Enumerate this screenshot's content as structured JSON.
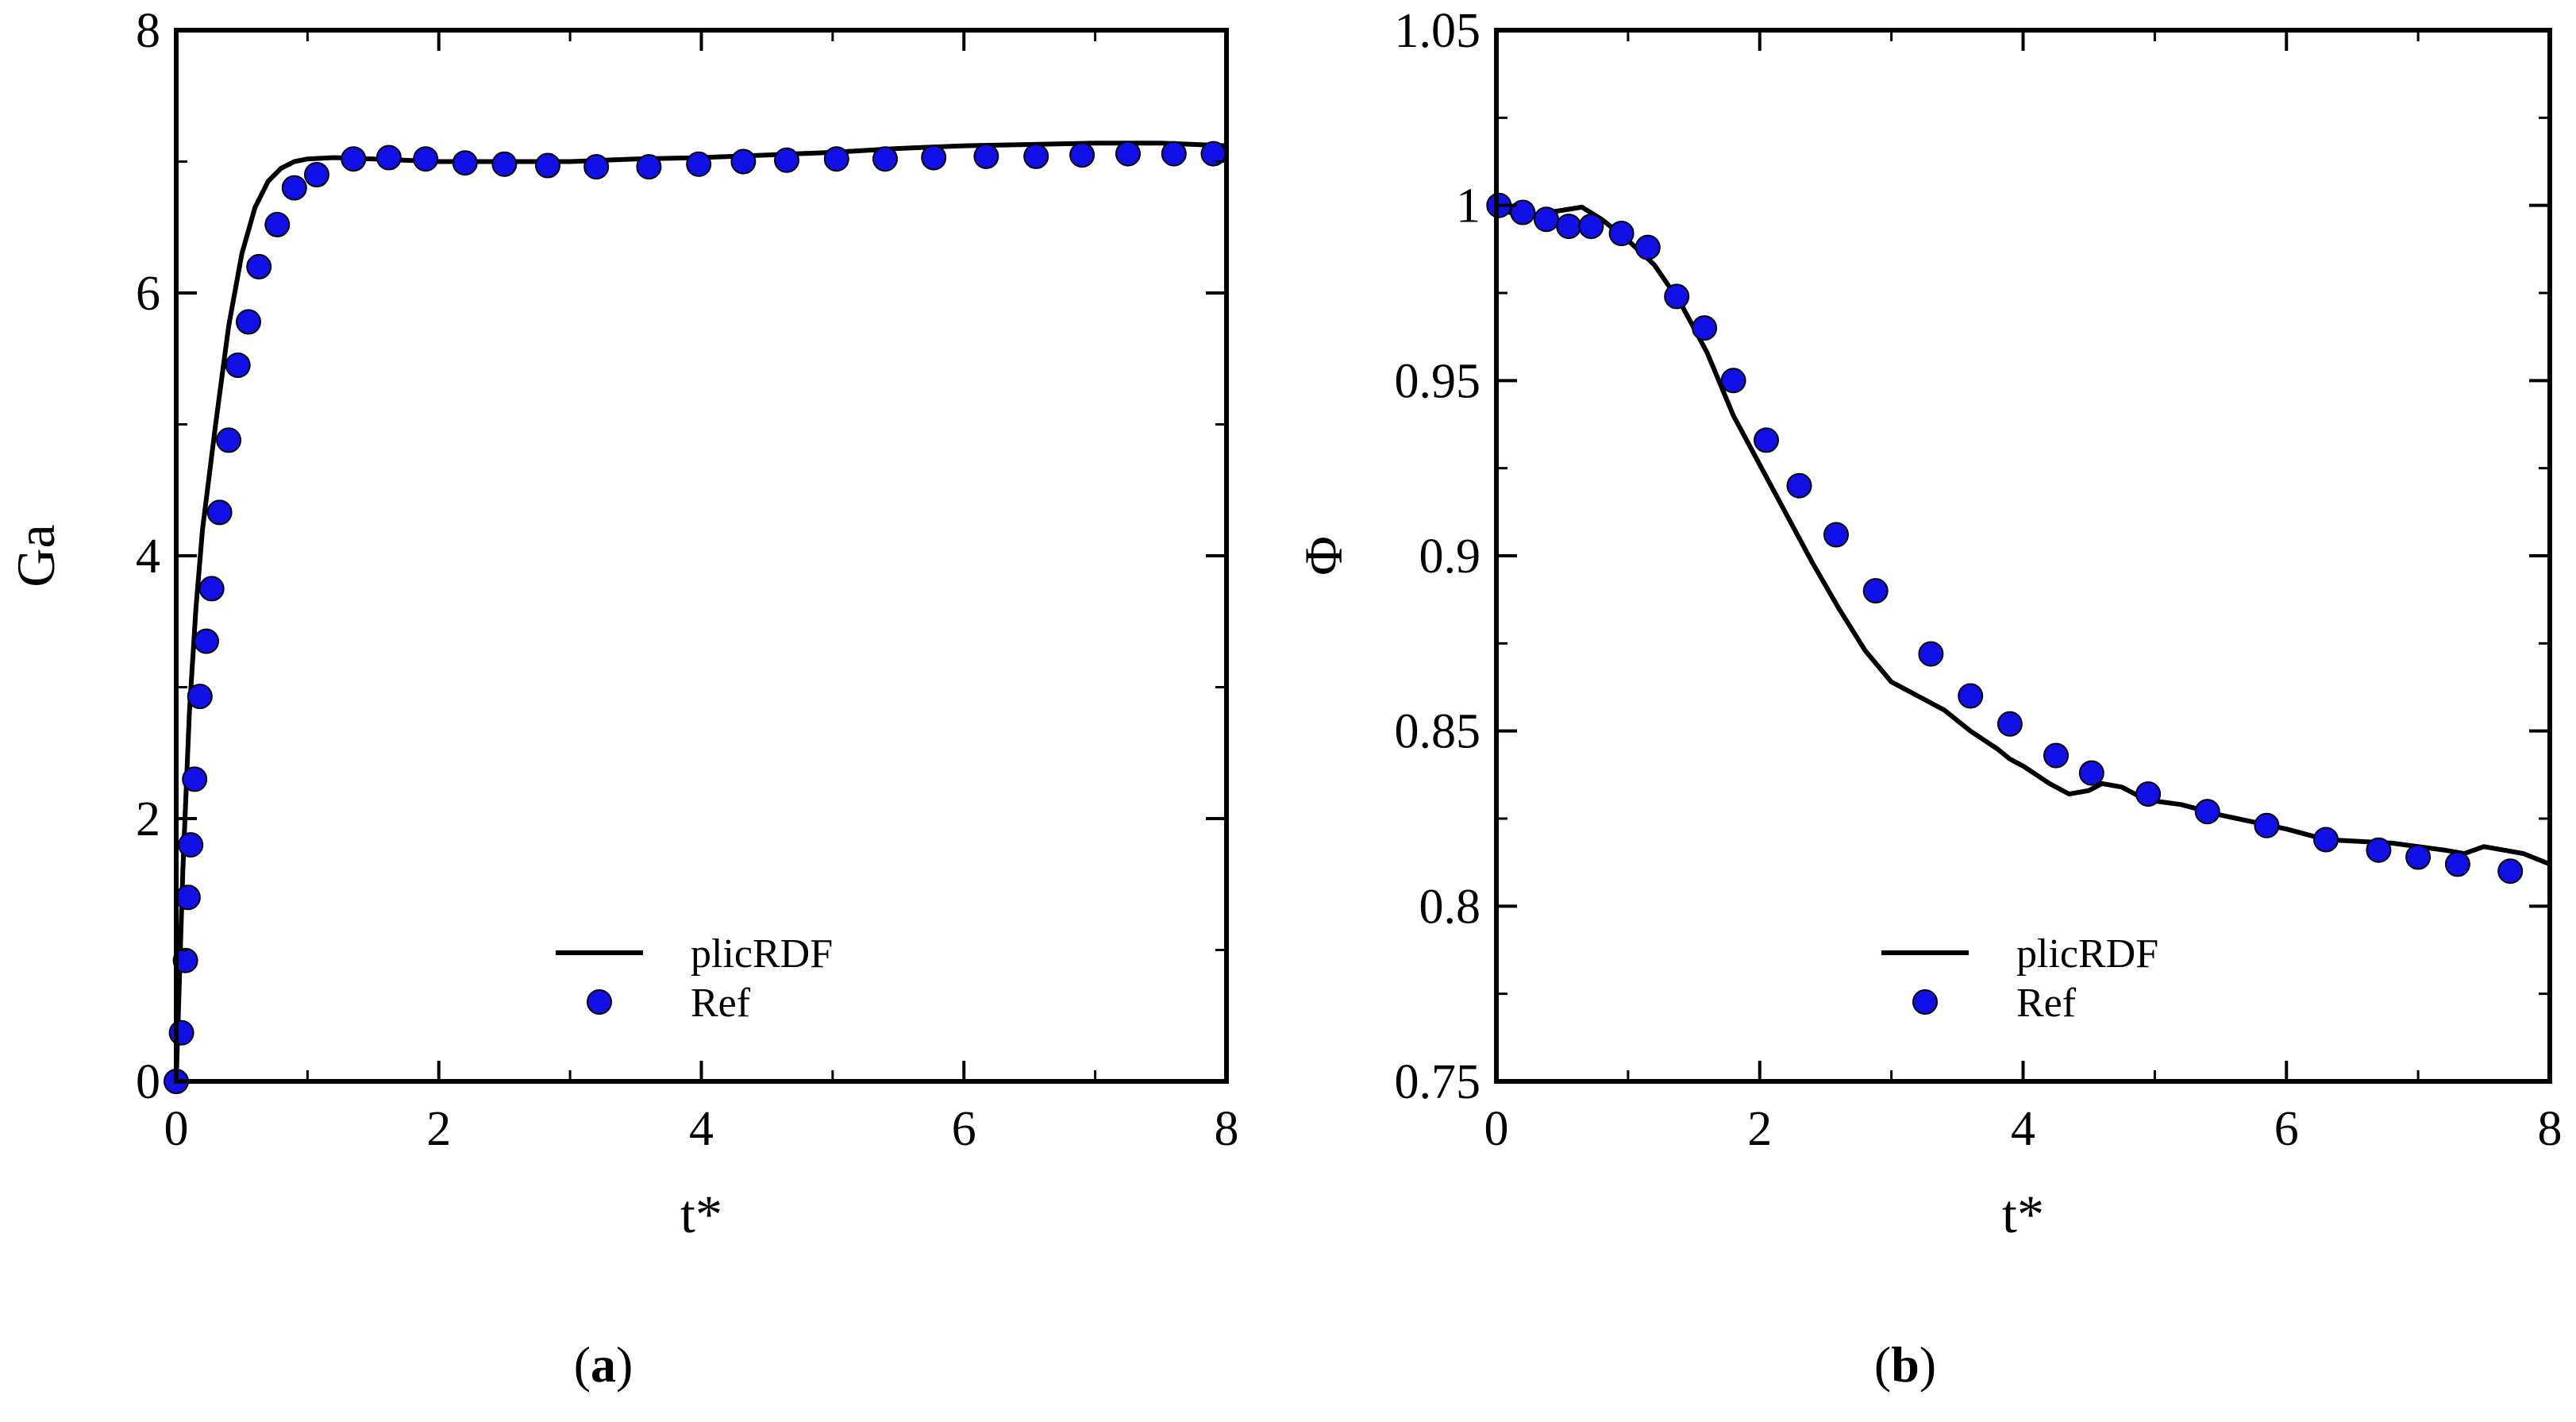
{
  "chart_data": [
    {
      "type": "line+scatter",
      "panel_label": "a",
      "xlabel": "t*",
      "ylabel": "Ga",
      "xlim": [
        0,
        8
      ],
      "ylim": [
        0,
        8
      ],
      "xticks": [
        0,
        2,
        4,
        6,
        8
      ],
      "yticks": [
        0,
        2,
        4,
        6,
        8
      ],
      "xtick_labels": [
        "0",
        "2",
        "4",
        "6",
        "8"
      ],
      "ytick_labels": [
        "0",
        "2",
        "4",
        "6",
        "8"
      ],
      "legend": [
        "plicRDF",
        "Ref"
      ],
      "legend_position": "bottom-center",
      "series": [
        {
          "name": "plicRDF",
          "kind": "line",
          "color": "#000000",
          "x": [
            0,
            0.05,
            0.1,
            0.15,
            0.2,
            0.3,
            0.4,
            0.5,
            0.6,
            0.7,
            0.8,
            0.9,
            1.0,
            1.2,
            1.5,
            2.0,
            2.5,
            3.0,
            3.5,
            4.0,
            4.5,
            5.0,
            5.5,
            6.0,
            6.5,
            7.0,
            7.5,
            8.0
          ],
          "y": [
            0,
            1.6,
            2.8,
            3.6,
            4.2,
            5.0,
            5.75,
            6.3,
            6.65,
            6.85,
            6.95,
            7.0,
            7.02,
            7.03,
            7.02,
            7.0,
            7.0,
            7.0,
            7.02,
            7.03,
            7.05,
            7.07,
            7.1,
            7.12,
            7.13,
            7.14,
            7.14,
            7.12
          ]
        },
        {
          "name": "Ref",
          "kind": "scatter",
          "color": "#1010e6",
          "x": [
            0.0,
            0.04,
            0.07,
            0.09,
            0.11,
            0.14,
            0.18,
            0.23,
            0.27,
            0.33,
            0.4,
            0.47,
            0.55,
            0.63,
            0.77,
            0.9,
            1.07,
            1.35,
            1.62,
            1.9,
            2.2,
            2.5,
            2.83,
            3.2,
            3.6,
            3.98,
            4.32,
            4.65,
            5.03,
            5.4,
            5.77,
            6.17,
            6.55,
            6.9,
            7.25,
            7.6,
            7.9
          ],
          "y": [
            0.0,
            0.37,
            0.92,
            1.4,
            1.8,
            2.3,
            2.93,
            3.35,
            3.75,
            4.33,
            4.88,
            5.45,
            5.78,
            6.2,
            6.52,
            6.8,
            6.9,
            7.02,
            7.03,
            7.02,
            6.99,
            6.98,
            6.97,
            6.96,
            6.96,
            6.98,
            7.0,
            7.01,
            7.02,
            7.02,
            7.03,
            7.04,
            7.04,
            7.05,
            7.06,
            7.06,
            7.06
          ]
        }
      ]
    },
    {
      "type": "line+scatter",
      "panel_label": "b",
      "xlabel": "t*",
      "ylabel": "Φ",
      "xlim": [
        0,
        8
      ],
      "ylim": [
        0.75,
        1.05
      ],
      "xticks": [
        0,
        2,
        4,
        6,
        8
      ],
      "yticks": [
        0.75,
        0.8,
        0.85,
        0.9,
        0.95,
        1.0,
        1.05
      ],
      "xtick_labels": [
        "0",
        "2",
        "4",
        "6",
        "8"
      ],
      "ytick_labels": [
        "0.75",
        "0.8",
        "0.85",
        "0.9",
        "0.95",
        "1",
        "1.05"
      ],
      "legend": [
        "plicRDF",
        "Ref"
      ],
      "legend_position": "bottom-center",
      "series": [
        {
          "name": "plicRDF",
          "kind": "line",
          "color": "#000000",
          "x": [
            0,
            0.2,
            0.4,
            0.65,
            0.8,
            1.0,
            1.2,
            1.4,
            1.6,
            1.8,
            2.0,
            2.2,
            2.4,
            2.6,
            2.8,
            3.0,
            3.2,
            3.4,
            3.6,
            3.8,
            3.9,
            4.0,
            4.2,
            4.35,
            4.5,
            4.6,
            4.75,
            4.9,
            5.0,
            5.2,
            5.5,
            6.0,
            6.3,
            6.8,
            7.2,
            7.35,
            7.5,
            7.8,
            8.0
          ],
          "y": [
            0.999,
            0.997,
            0.998,
            0.9995,
            0.996,
            0.99,
            0.983,
            0.972,
            0.958,
            0.94,
            0.926,
            0.912,
            0.898,
            0.885,
            0.873,
            0.864,
            0.86,
            0.856,
            0.85,
            0.845,
            0.842,
            0.84,
            0.835,
            0.832,
            0.833,
            0.835,
            0.834,
            0.831,
            0.83,
            0.829,
            0.826,
            0.822,
            0.819,
            0.818,
            0.816,
            0.815,
            0.817,
            0.815,
            0.812
          ]
        },
        {
          "name": "Ref",
          "kind": "scatter",
          "color": "#1010e6",
          "x": [
            0.02,
            0.2,
            0.38,
            0.55,
            0.72,
            0.95,
            1.15,
            1.37,
            1.58,
            1.8,
            2.05,
            2.3,
            2.58,
            2.88,
            3.3,
            3.6,
            3.9,
            4.25,
            4.52,
            4.95,
            5.4,
            5.85,
            6.3,
            6.7,
            7.0,
            7.3,
            7.7
          ],
          "y": [
            1.0,
            0.998,
            0.996,
            0.994,
            0.994,
            0.992,
            0.988,
            0.974,
            0.965,
            0.95,
            0.933,
            0.92,
            0.906,
            0.89,
            0.872,
            0.86,
            0.852,
            0.843,
            0.838,
            0.832,
            0.827,
            0.823,
            0.819,
            0.816,
            0.814,
            0.812,
            0.81
          ]
        }
      ]
    }
  ]
}
